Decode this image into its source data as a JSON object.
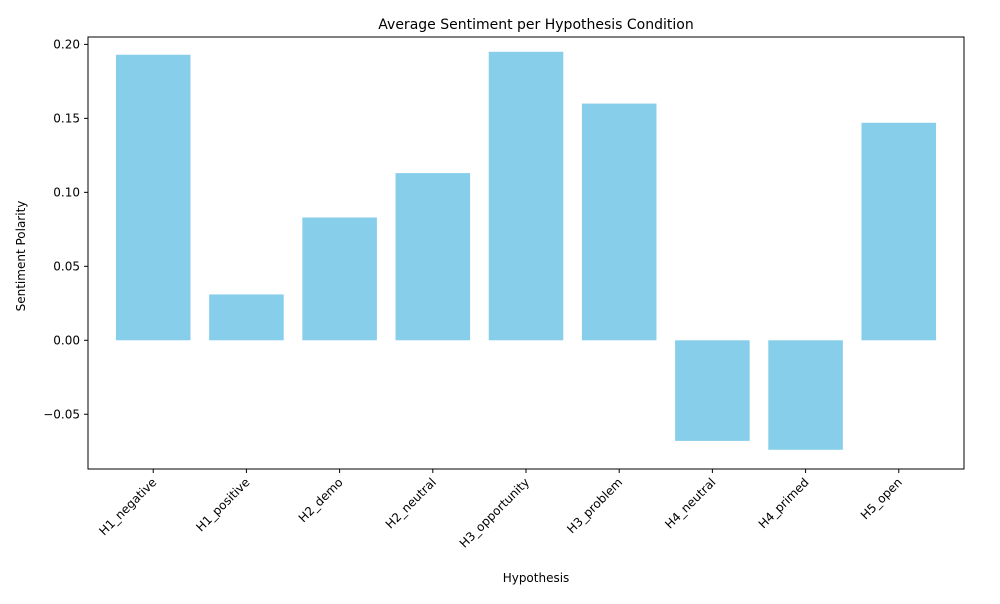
{
  "chart_data": {
    "type": "bar",
    "title": "Average Sentiment per Hypothesis Condition",
    "xlabel": "Hypothesis",
    "ylabel": "Sentiment Polarity",
    "categories": [
      "H1_negative",
      "H1_positive",
      "H2_demo",
      "H2_neutral",
      "H3_opportunity",
      "H3_problem",
      "H4_neutral",
      "H4_primed",
      "H5_open"
    ],
    "values": [
      0.193,
      0.031,
      0.083,
      0.113,
      0.195,
      0.16,
      -0.068,
      -0.074,
      0.147
    ],
    "ylim": [
      -0.087,
      0.205
    ],
    "yticks": [
      -0.05,
      0.0,
      0.05,
      0.1,
      0.15,
      0.2
    ],
    "ytick_labels": [
      "−0.05",
      "0.00",
      "0.05",
      "0.10",
      "0.15",
      "0.20"
    ],
    "grid": false,
    "bar_color": "#87ceeb"
  }
}
